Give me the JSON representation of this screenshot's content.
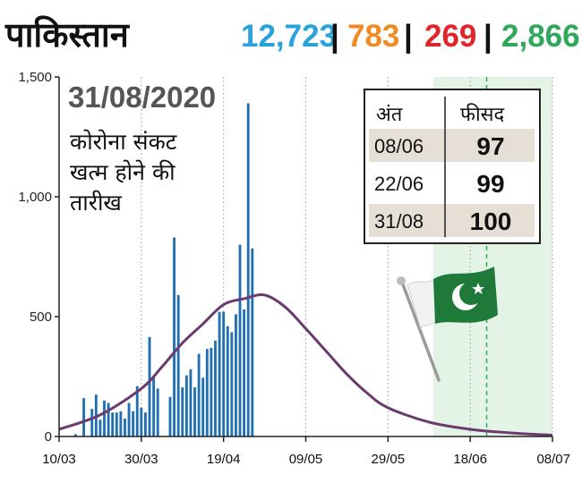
{
  "header": {
    "country": "पाकिस्तान",
    "stats": [
      {
        "value": "12,723",
        "color": "#2aa3dc"
      },
      {
        "value": "783",
        "color": "#f08a24"
      },
      {
        "value": "269",
        "color": "#e0262b"
      },
      {
        "value": "2,866",
        "color": "#2ea85a"
      }
    ],
    "separator": "|"
  },
  "annotation": {
    "date": "31/08/2020",
    "line1": "कोरोना संकट",
    "line2": "खत्म होने की",
    "line3": "तारीख"
  },
  "table": {
    "headers": [
      "अंत",
      "फीसद"
    ],
    "rows": [
      {
        "date": "08/06",
        "percent": "97",
        "shaded": true
      },
      {
        "date": "22/06",
        "percent": "99",
        "shaded": false
      },
      {
        "date": "31/08",
        "percent": "100",
        "shaded": true
      }
    ]
  },
  "flag_icon": "pakistan-flag-icon",
  "colors": {
    "bars": "#1f6fb2",
    "curve": "#6b3a6e",
    "projection_band": "#e3f3e6",
    "projection_line": "#2ea85a",
    "grid": "#9a9a9a"
  },
  "chart_data": {
    "type": "bar",
    "x_start": "10/03",
    "x_tick_labels": [
      "10/03",
      "30/03",
      "19/04",
      "09/05",
      "29/05",
      "18/06",
      "08/07"
    ],
    "x_tick_days": [
      0,
      20,
      40,
      60,
      80,
      100,
      120
    ],
    "ylim": [
      0,
      1500
    ],
    "y_ticks": [
      0,
      500,
      1000,
      1500
    ],
    "y_tick_labels": [
      "0",
      "500",
      "1,000",
      "1,500"
    ],
    "grid": "vertical dotted",
    "bars": [
      {
        "day": 4,
        "value": 10
      },
      {
        "day": 6,
        "value": 160
      },
      {
        "day": 8,
        "value": 115
      },
      {
        "day": 9,
        "value": 175
      },
      {
        "day": 10,
        "value": 70
      },
      {
        "day": 11,
        "value": 150
      },
      {
        "day": 12,
        "value": 140
      },
      {
        "day": 13,
        "value": 100
      },
      {
        "day": 14,
        "value": 100
      },
      {
        "day": 15,
        "value": 105
      },
      {
        "day": 16,
        "value": 75
      },
      {
        "day": 17,
        "value": 140
      },
      {
        "day": 18,
        "value": 105
      },
      {
        "day": 19,
        "value": 210
      },
      {
        "day": 20,
        "value": 120
      },
      {
        "day": 21,
        "value": 100
      },
      {
        "day": 22,
        "value": 415
      },
      {
        "day": 23,
        "value": 255
      },
      {
        "day": 24,
        "value": 200
      },
      {
        "day": 27,
        "value": 165
      },
      {
        "day": 28,
        "value": 830
      },
      {
        "day": 29,
        "value": 590
      },
      {
        "day": 30,
        "value": 205
      },
      {
        "day": 31,
        "value": 255
      },
      {
        "day": 32,
        "value": 280
      },
      {
        "day": 33,
        "value": 205
      },
      {
        "day": 34,
        "value": 345
      },
      {
        "day": 35,
        "value": 245
      },
      {
        "day": 36,
        "value": 365
      },
      {
        "day": 37,
        "value": 370
      },
      {
        "day": 38,
        "value": 400
      },
      {
        "day": 39,
        "value": 520
      },
      {
        "day": 40,
        "value": 520
      },
      {
        "day": 41,
        "value": 460
      },
      {
        "day": 42,
        "value": 435
      },
      {
        "day": 43,
        "value": 510
      },
      {
        "day": 44,
        "value": 800
      },
      {
        "day": 45,
        "value": 530
      },
      {
        "day": 46,
        "value": 1390
      },
      {
        "day": 47,
        "value": 785
      }
    ],
    "curve": {
      "type": "line",
      "x_days": [
        0,
        10,
        20,
        25,
        30,
        35,
        40,
        45,
        50,
        55,
        60,
        65,
        70,
        75,
        80,
        90,
        100,
        110,
        120
      ],
      "values": [
        30,
        90,
        200,
        290,
        390,
        470,
        550,
        575,
        590,
        540,
        450,
        355,
        260,
        180,
        120,
        60,
        30,
        15,
        5
      ]
    },
    "projection": {
      "band_start_day": 91,
      "band_end_day": 120,
      "line_day": 104
    }
  }
}
